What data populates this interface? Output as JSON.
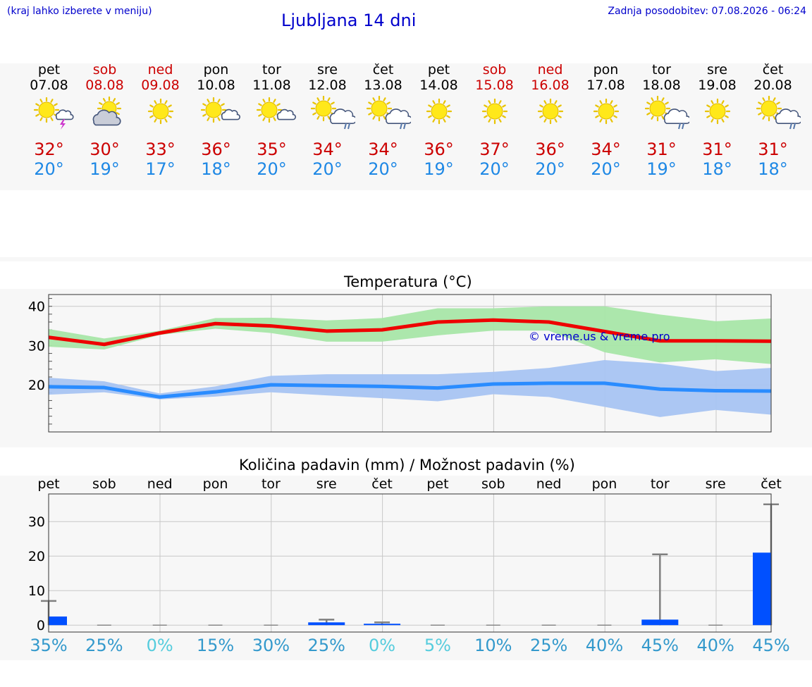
{
  "header": {
    "left_note": "(kraj lahko izberete v meniju)",
    "title": "Ljubljana 14 dni",
    "updated": "Zadnja posodobitev: 07.08.2026 - 06:24"
  },
  "days": [
    {
      "name": "pet",
      "date": "07.08",
      "weekend": false,
      "icon": "sun-thunder-icon",
      "tmax": "32°",
      "tmin": "20°"
    },
    {
      "name": "sob",
      "date": "08.08",
      "weekend": true,
      "icon": "sun-cloud-icon",
      "tmax": "30°",
      "tmin": "19°"
    },
    {
      "name": "ned",
      "date": "09.08",
      "weekend": true,
      "icon": "sun-icon",
      "tmax": "33°",
      "tmin": "17°"
    },
    {
      "name": "pon",
      "date": "10.08",
      "weekend": false,
      "icon": "sun-small-cloud-icon",
      "tmax": "36°",
      "tmin": "18°"
    },
    {
      "name": "tor",
      "date": "11.08",
      "weekend": false,
      "icon": "sun-small-cloud-icon",
      "tmax": "35°",
      "tmin": "20°"
    },
    {
      "name": "sre",
      "date": "12.08",
      "weekend": false,
      "icon": "sun-rain-icon",
      "tmax": "34°",
      "tmin": "20°"
    },
    {
      "name": "čet",
      "date": "13.08",
      "weekend": false,
      "icon": "sun-rain-icon",
      "tmax": "34°",
      "tmin": "20°"
    },
    {
      "name": "pet",
      "date": "14.08",
      "weekend": false,
      "icon": "sun-icon",
      "tmax": "36°",
      "tmin": "19°"
    },
    {
      "name": "sob",
      "date": "15.08",
      "weekend": true,
      "icon": "sun-icon",
      "tmax": "37°",
      "tmin": "20°"
    },
    {
      "name": "ned",
      "date": "16.08",
      "weekend": true,
      "icon": "sun-icon",
      "tmax": "36°",
      "tmin": "20°"
    },
    {
      "name": "pon",
      "date": "17.08",
      "weekend": false,
      "icon": "sun-icon",
      "tmax": "34°",
      "tmin": "20°"
    },
    {
      "name": "tor",
      "date": "18.08",
      "weekend": false,
      "icon": "sun-rain-icon",
      "tmax": "31°",
      "tmin": "19°"
    },
    {
      "name": "sre",
      "date": "19.08",
      "weekend": false,
      "icon": "sun-icon",
      "tmax": "31°",
      "tmin": "18°"
    },
    {
      "name": "čet",
      "date": "20.08",
      "weekend": false,
      "icon": "sun-rain-icon",
      "tmax": "31°",
      "tmin": "18°"
    }
  ],
  "colors": {
    "max_line": "#ee0000",
    "max_band": "#a8e6a8",
    "min_line": "#2a8cff",
    "min_band": "#a8c4f2",
    "precip_bar": "#0050ff",
    "whisker": "#808080",
    "weekend": "#cc0000",
    "title_blue": "#0000cc"
  },
  "chart_data": [
    {
      "type": "line",
      "title": "Temperatura (°C)",
      "ylim": [
        8,
        43
      ],
      "yticks": [
        20,
        30,
        40
      ],
      "grid": true,
      "watermark": "© vreme.us & vreme.pro",
      "series": [
        {
          "values": [
            32.1,
            30.3,
            33.2,
            35.6,
            35.0,
            33.7,
            34.0,
            36.0,
            36.5,
            36.0,
            33.6,
            31.2,
            31.2,
            31.1
          ],
          "band_low": [
            29.7,
            29.0,
            32.7,
            34.3,
            33.2,
            31.0,
            31.0,
            32.6,
            33.8,
            33.8,
            28.3,
            25.7,
            26.5,
            25.3
          ],
          "band_high": [
            34.2,
            31.8,
            33.8,
            37.0,
            37.1,
            36.4,
            37.0,
            39.5,
            39.5,
            40.0,
            40.0,
            37.9,
            36.2,
            36.9
          ]
        },
        {
          "values": [
            19.5,
            19.3,
            16.9,
            18.2,
            20.0,
            19.8,
            19.6,
            19.2,
            20.2,
            20.4,
            20.4,
            18.9,
            18.5,
            18.4
          ],
          "band_low": [
            17.5,
            18.1,
            16.3,
            17.0,
            18.1,
            17.3,
            16.6,
            15.8,
            17.6,
            16.9,
            14.4,
            11.8,
            13.6,
            12.4
          ],
          "band_high": [
            21.8,
            20.9,
            17.8,
            19.6,
            22.3,
            22.7,
            22.7,
            22.7,
            23.3,
            24.3,
            26.3,
            25.4,
            23.5,
            24.3
          ]
        }
      ]
    },
    {
      "type": "bar",
      "title": "Količina padavin (mm) / Možnost padavin (%)",
      "ylim": [
        -2,
        38
      ],
      "yticks": [
        0,
        10,
        20,
        30
      ],
      "grid": true,
      "categories": [
        "pet",
        "sob",
        "ned",
        "pon",
        "tor",
        "sre",
        "čet",
        "pet",
        "sob",
        "ned",
        "pon",
        "tor",
        "sre",
        "čet"
      ],
      "values": [
        2.5,
        0,
        0,
        0,
        0,
        0.8,
        0.4,
        0,
        0,
        0,
        0,
        1.6,
        0,
        21
      ],
      "whisker_high": [
        7,
        0,
        0,
        0,
        0,
        1.6,
        0.8,
        0,
        0,
        0,
        0,
        20.5,
        0,
        35
      ],
      "probability": [
        "35%",
        "25%",
        "0%",
        "15%",
        "30%",
        "25%",
        "0%",
        "5%",
        "10%",
        "25%",
        "40%",
        "45%",
        "40%",
        "45%"
      ],
      "probability_colors": [
        "#3399cc",
        "#3399cc",
        "#55ccdd",
        "#3399cc",
        "#3399cc",
        "#3399cc",
        "#55ccdd",
        "#55ccdd",
        "#3399cc",
        "#3399cc",
        "#3399cc",
        "#3399cc",
        "#3399cc",
        "#3399cc"
      ]
    }
  ]
}
